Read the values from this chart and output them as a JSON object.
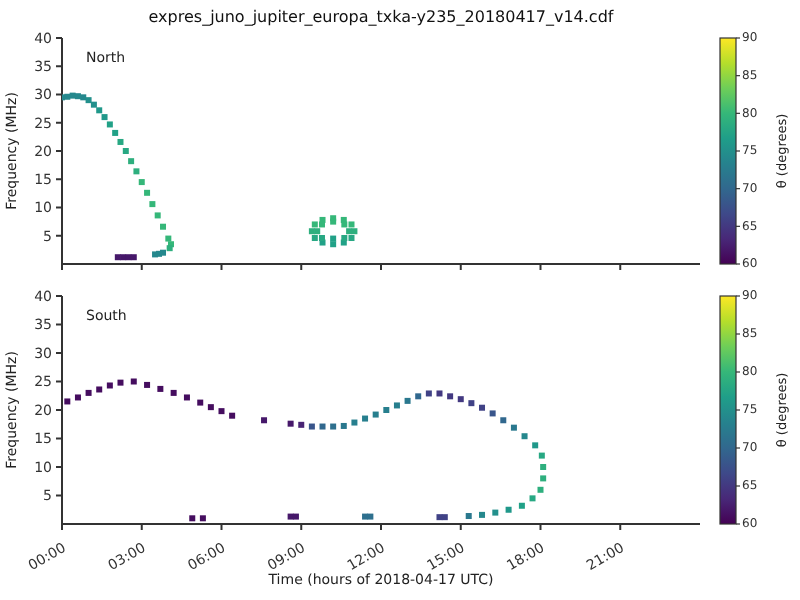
{
  "chart_data": [
    {
      "type": "scatter",
      "title": "expres_juno_jupiter_europa_txka-y235_20180417_v14.cdf",
      "ylabel": "Frequency (MHz)",
      "annotations": [
        "North"
      ],
      "clabel": "θ (degrees)",
      "clim": [
        60,
        90
      ],
      "cticks": [
        60,
        65,
        70,
        75,
        80,
        85,
        90
      ],
      "xlim": [
        0,
        24
      ],
      "xticks": [
        {
          "value": 0,
          "label": null
        },
        {
          "value": 3,
          "label": null
        },
        {
          "value": 6,
          "label": null
        },
        {
          "value": 9,
          "label": null
        },
        {
          "value": 12,
          "label": null
        },
        {
          "value": 15,
          "label": null
        },
        {
          "value": 18,
          "label": null
        },
        {
          "value": 21,
          "label": null
        }
      ],
      "ylim": [
        0,
        40
      ],
      "yticks": [
        5,
        10,
        15,
        20,
        25,
        30,
        35,
        40
      ],
      "tick_labels": "y",
      "marker": "square",
      "series": [
        {
          "x": [
            0,
            0.2,
            0.4,
            0.6,
            0.8,
            1.0,
            1.2,
            1.4,
            1.6,
            1.8,
            2.0,
            2.2,
            2.4,
            2.6,
            2.8,
            3.0,
            3.2,
            3.4,
            3.6,
            3.8,
            4.0,
            4.1,
            4.05,
            2.1,
            2.3,
            2.5,
            2.7,
            3.5,
            3.65,
            3.8,
            11.0,
            10.89,
            10.6,
            10.2,
            9.8,
            9.51,
            9.4,
            9.51,
            9.8,
            10.2,
            10.6,
            10.89,
            10.8,
            10.62,
            10.2,
            9.78,
            9.6,
            9.78,
            10.2,
            10.62
          ],
          "values": [
            29.5,
            29.6,
            29.8,
            29.7,
            29.5,
            29.0,
            28.2,
            27.2,
            26.0,
            24.7,
            23.2,
            21.6,
            20.0,
            18.2,
            16.4,
            14.5,
            12.6,
            10.6,
            8.6,
            6.6,
            4.5,
            3.5,
            2.8,
            1.2,
            1.2,
            1.2,
            1.2,
            1.7,
            1.8,
            2.0,
            5.8,
            7.0,
            7.8,
            8.1,
            7.8,
            7.0,
            5.8,
            4.6,
            3.8,
            3.5,
            3.8,
            4.6,
            5.8,
            7.0,
            7.5,
            7.0,
            5.8,
            4.6,
            4.5,
            4.6
          ],
          "cvalues": [
            74,
            74,
            74,
            74,
            74,
            75,
            75,
            76,
            76,
            77,
            77,
            78,
            78,
            79,
            79,
            80,
            80,
            80,
            80,
            80,
            80,
            80,
            79,
            62,
            62,
            62,
            62,
            74,
            74,
            74,
            79,
            80,
            80,
            80,
            80,
            80,
            79,
            78,
            77,
            77,
            77,
            78,
            79,
            80,
            80,
            80,
            79,
            78,
            77,
            78
          ]
        }
      ]
    },
    {
      "type": "scatter",
      "ylabel": "Frequency (MHz)",
      "xlabel": "Time (hours of 2018-04-17 UTC)",
      "annotations": [
        "South"
      ],
      "clabel": "θ (degrees)",
      "clim": [
        60,
        90
      ],
      "cticks": [
        60,
        65,
        70,
        75,
        80,
        85,
        90
      ],
      "xlim": [
        0,
        24
      ],
      "xticks": [
        {
          "value": 0,
          "label": "00:00"
        },
        {
          "value": 3,
          "label": "03:00"
        },
        {
          "value": 6,
          "label": "06:00"
        },
        {
          "value": 9,
          "label": "09:00"
        },
        {
          "value": 12,
          "label": "12:00"
        },
        {
          "value": 15,
          "label": "15:00"
        },
        {
          "value": 18,
          "label": "18:00"
        },
        {
          "value": 21,
          "label": "21:00"
        }
      ],
      "ylim": [
        0,
        40
      ],
      "yticks": [
        5,
        10,
        15,
        20,
        25,
        30,
        35,
        40
      ],
      "marker": "square",
      "series": [
        {
          "x": [
            0.2,
            0.6,
            1.0,
            1.4,
            1.8,
            2.2,
            2.7,
            3.2,
            3.7,
            4.2,
            4.7,
            5.2,
            5.6,
            6.0,
            6.4,
            7.6,
            8.6,
            9.0,
            9.4,
            9.8,
            10.2,
            10.6,
            11.0,
            11.4,
            11.8,
            12.2,
            12.6,
            13.0,
            13.4,
            13.8,
            14.2,
            14.6,
            15.0,
            15.4,
            15.8,
            16.2,
            16.6,
            17.0,
            17.4,
            17.8,
            18.05,
            18.1,
            18.1,
            18.0,
            17.7,
            17.3,
            16.8,
            16.3,
            15.8,
            4.9,
            5.3,
            8.6,
            8.8,
            11.4,
            11.6,
            14.2,
            14.4,
            15.3
          ],
          "values": [
            21.5,
            22.2,
            23.0,
            23.6,
            24.3,
            24.8,
            25.0,
            24.4,
            23.7,
            23.0,
            22.2,
            21.3,
            20.5,
            19.8,
            19.0,
            18.2,
            17.6,
            17.4,
            17.1,
            17.1,
            17.1,
            17.2,
            17.8,
            18.5,
            19.2,
            20.0,
            20.8,
            21.6,
            22.4,
            22.9,
            22.9,
            22.4,
            21.9,
            21.2,
            20.4,
            19.4,
            18.2,
            16.9,
            15.4,
            13.8,
            12.0,
            10.0,
            8.0,
            6.0,
            4.5,
            3.2,
            2.5,
            2.0,
            1.6,
            1.0,
            1.0,
            1.3,
            1.3,
            1.3,
            1.3,
            1.2,
            1.2,
            1.4
          ],
          "cvalues": [
            61,
            61,
            61,
            61,
            61,
            61,
            61,
            61,
            61,
            61,
            61,
            61,
            61,
            61,
            61,
            62,
            62,
            63,
            68,
            70,
            71,
            72,
            73,
            73,
            73,
            73,
            73,
            72,
            70,
            66,
            65,
            65,
            65,
            66,
            66,
            68,
            70,
            72,
            74,
            76,
            78,
            79,
            79,
            79,
            78,
            77,
            76,
            75,
            74,
            61,
            61,
            62,
            62,
            71,
            71,
            66,
            66,
            72
          ]
        }
      ]
    }
  ]
}
